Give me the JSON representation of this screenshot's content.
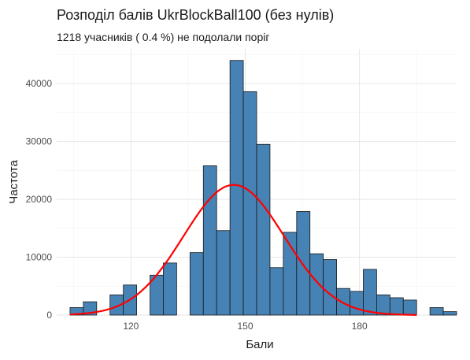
{
  "chart_data": {
    "type": "bar",
    "title": "Розподіл балів UkrBlockBall100 (без нулів)",
    "subtitle": "1218 учасників ( 0.4 %) не подолали поріг",
    "xlabel": "Бали",
    "ylabel": "Частота",
    "xlim": [
      100.5,
      205.5
    ],
    "ylim": [
      0,
      46000
    ],
    "x_ticks": [
      120,
      150,
      180
    ],
    "y_ticks": [
      0,
      10000,
      20000,
      30000,
      40000
    ],
    "y_tick_labels": [
      "0",
      "10000",
      "20000",
      "30000",
      "40000"
    ],
    "grid": true,
    "bar_fill": "#4682B4",
    "bar_outline": "#1a1a1a",
    "curve_color": "#FF0000",
    "bins": [
      {
        "x0": 104.0,
        "x1": 107.5,
        "count": 1300
      },
      {
        "x0": 107.5,
        "x1": 111.0,
        "count": 2300
      },
      {
        "x0": 111.0,
        "x1": 114.5,
        "count": 0
      },
      {
        "x0": 114.5,
        "x1": 118.0,
        "count": 3500
      },
      {
        "x0": 118.0,
        "x1": 121.5,
        "count": 5200
      },
      {
        "x0": 121.5,
        "x1": 125.0,
        "count": 0
      },
      {
        "x0": 125.0,
        "x1": 128.5,
        "count": 6900
      },
      {
        "x0": 128.5,
        "x1": 132.0,
        "count": 9000
      },
      {
        "x0": 132.0,
        "x1": 135.5,
        "count": 0
      },
      {
        "x0": 135.5,
        "x1": 139.0,
        "count": 10800
      },
      {
        "x0": 139.0,
        "x1": 142.5,
        "count": 25800
      },
      {
        "x0": 142.5,
        "x1": 146.0,
        "count": 14600
      },
      {
        "x0": 146.0,
        "x1": 149.5,
        "count": 44000
      },
      {
        "x0": 149.5,
        "x1": 153.0,
        "count": 38600
      },
      {
        "x0": 153.0,
        "x1": 156.5,
        "count": 29500
      },
      {
        "x0": 156.5,
        "x1": 160.0,
        "count": 8200
      },
      {
        "x0": 160.0,
        "x1": 163.5,
        "count": 14300
      },
      {
        "x0": 163.5,
        "x1": 167.0,
        "count": 17900
      },
      {
        "x0": 167.0,
        "x1": 170.5,
        "count": 10600
      },
      {
        "x0": 170.5,
        "x1": 174.0,
        "count": 9600
      },
      {
        "x0": 174.0,
        "x1": 177.5,
        "count": 4600
      },
      {
        "x0": 177.5,
        "x1": 181.0,
        "count": 4100
      },
      {
        "x0": 181.0,
        "x1": 184.5,
        "count": 7900
      },
      {
        "x0": 184.5,
        "x1": 188.0,
        "count": 3500
      },
      {
        "x0": 188.0,
        "x1": 191.5,
        "count": 3000
      },
      {
        "x0": 191.5,
        "x1": 195.0,
        "count": 2600
      },
      {
        "x0": 195.0,
        "x1": 198.5,
        "count": 0
      },
      {
        "x0": 198.5,
        "x1": 202.0,
        "count": 1300
      },
      {
        "x0": 202.0,
        "x1": 205.5,
        "count": 600
      }
    ],
    "normal_curve": {
      "mean": 147,
      "sd": 13.2,
      "peak": 22500,
      "x_from": 104,
      "x_to": 195
    }
  }
}
